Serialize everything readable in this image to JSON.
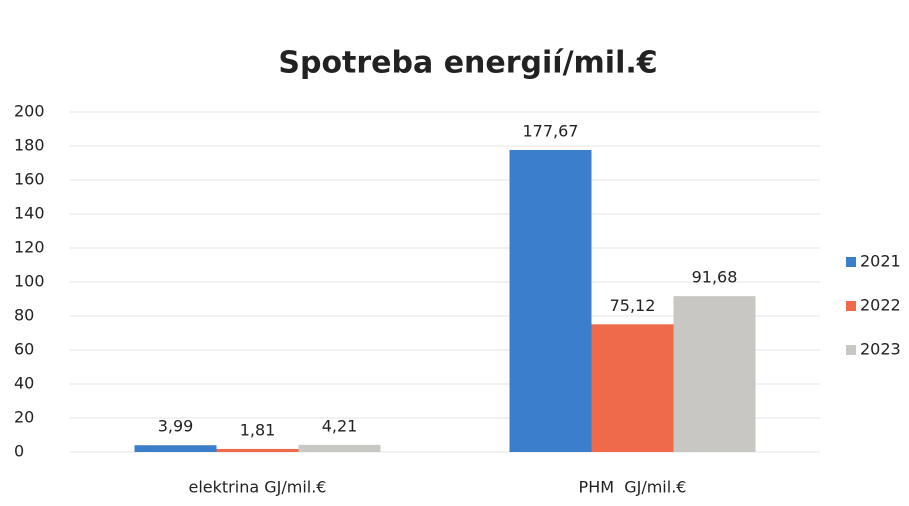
{
  "chart_data": {
    "type": "bar",
    "title": "Spotreba energií/mil.€",
    "categories": [
      "elektrina GJ/mil.€",
      "PHM  GJ/mil.€"
    ],
    "series": [
      {
        "name": "2021",
        "color": "#3b7fcb",
        "values": [
          3.99,
          177.67
        ],
        "value_labels": [
          "3,99",
          "177,67"
        ]
      },
      {
        "name": "2022",
        "color": "#ef6a4a",
        "values": [
          1.81,
          75.12
        ],
        "value_labels": [
          "1,81",
          "75,12"
        ]
      },
      {
        "name": "2023",
        "color": "#c9c7c3",
        "values": [
          4.21,
          91.68
        ],
        "value_labels": [
          "4,21",
          "91,68"
        ]
      }
    ],
    "ylim": [
      0,
      200
    ],
    "yticks": [
      0,
      20,
      40,
      60,
      80,
      100,
      120,
      140,
      160,
      180,
      200
    ],
    "grid": true,
    "legend": "right"
  }
}
